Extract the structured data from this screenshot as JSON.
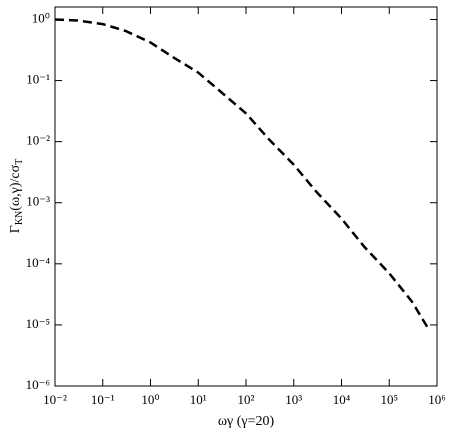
{
  "chart_data": {
    "type": "line",
    "x_label": "ωγ (γ=20)",
    "y_label": [
      "Γ",
      "KN",
      "(ω,γ)/cσ",
      "T"
    ],
    "x": [
      0.01,
      0.03,
      0.1,
      0.3,
      1,
      3,
      10,
      30,
      100,
      300,
      1000,
      3000,
      10000,
      30000,
      100000,
      300000,
      700000
    ],
    "values": [
      1.0,
      0.96,
      0.84,
      0.65,
      0.42,
      0.24,
      0.135,
      0.065,
      0.029,
      0.011,
      0.0042,
      0.0015,
      0.00055,
      0.00019,
      7e-05,
      2.4e-05,
      8e-06
    ],
    "color": "#000000",
    "line_style": "dashed",
    "xscale": "log",
    "yscale": "log",
    "xlim": [
      0.01,
      1000000
    ],
    "ylim": [
      1e-06,
      1.6
    ],
    "xticks": [
      {
        "value": 0.01,
        "label": "10⁻²"
      },
      {
        "value": 0.1,
        "label": "10⁻¹"
      },
      {
        "value": 1,
        "label": "10⁰"
      },
      {
        "value": 10,
        "label": "10¹"
      },
      {
        "value": 100,
        "label": "10²"
      },
      {
        "value": 1000,
        "label": "10³"
      },
      {
        "value": 10000,
        "label": "10⁴"
      },
      {
        "value": 100000,
        "label": "10⁵"
      },
      {
        "value": 1000000,
        "label": "10⁶"
      }
    ],
    "yticks": [
      {
        "value": 1e-06,
        "label": "10⁻⁶"
      },
      {
        "value": 1e-05,
        "label": "10⁻⁵"
      },
      {
        "value": 0.0001,
        "label": "10⁻⁴"
      },
      {
        "value": 0.001,
        "label": "10⁻³"
      },
      {
        "value": 0.01,
        "label": "10⁻²"
      },
      {
        "value": 0.1,
        "label": "10⁻¹"
      },
      {
        "value": 1,
        "label": "10⁰"
      }
    ],
    "grid": false
  }
}
